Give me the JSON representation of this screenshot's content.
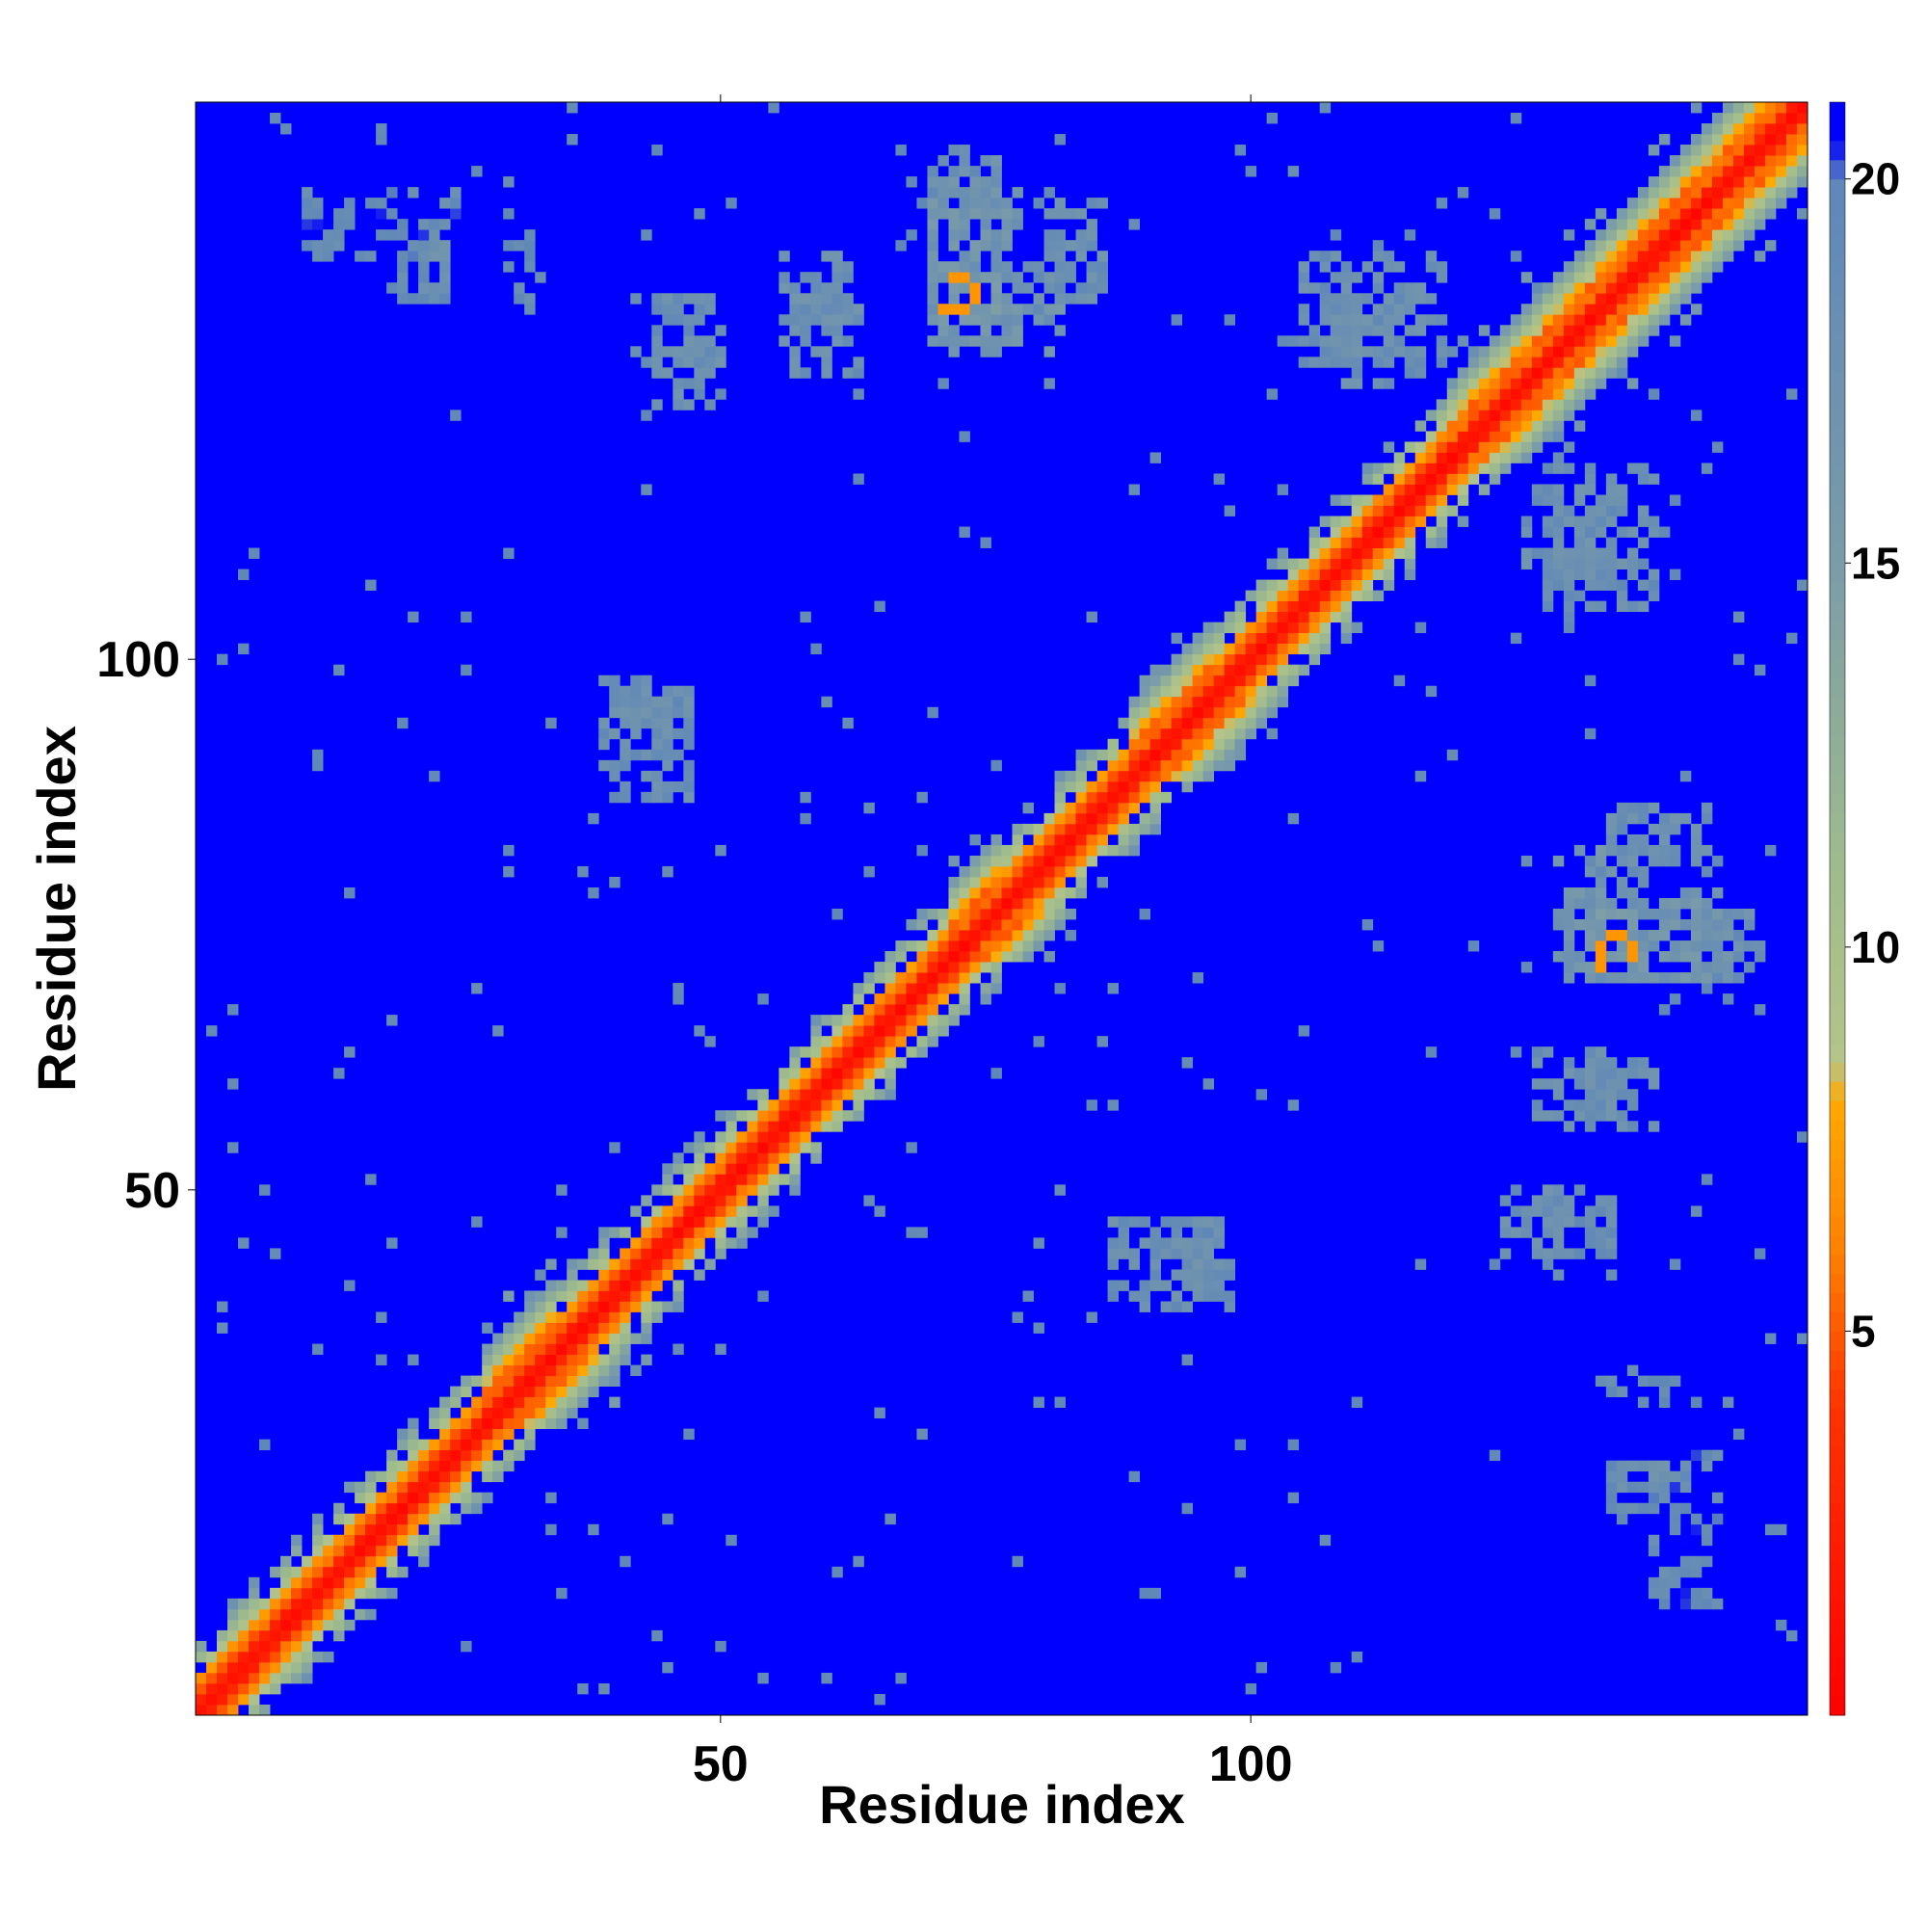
{
  "chart_data": {
    "type": "heatmap",
    "title": "",
    "xlabel": "Residue index",
    "ylabel": "Residue index",
    "n_residues": 152,
    "xlim": [
      1,
      152
    ],
    "ylim": [
      1,
      152
    ],
    "x_ticks": [
      50,
      100
    ],
    "y_ticks": [
      50,
      100
    ],
    "colorbar": {
      "ticks": [
        5,
        10,
        15,
        20
      ],
      "range": [
        0,
        21
      ],
      "stops": [
        {
          "value": 0,
          "color": "#ff0000"
        },
        {
          "value": 4,
          "color": "#ff3300"
        },
        {
          "value": 6,
          "color": "#ff8000"
        },
        {
          "value": 8,
          "color": "#ffaa00"
        },
        {
          "value": 8.5,
          "color": "#b5c48a"
        },
        {
          "value": 11,
          "color": "#9fbc8c"
        },
        {
          "value": 15,
          "color": "#7b9ca8"
        },
        {
          "value": 20,
          "color": "#5f87b8"
        },
        {
          "value": 20.5,
          "color": "#0000ff"
        },
        {
          "value": 21,
          "color": "#0000ff"
        }
      ]
    },
    "background_color": "#0000ff",
    "diagonal": {
      "profile": [
        {
          "offset": 0,
          "value": 1.0
        },
        {
          "offset": 1,
          "value": 2.5
        },
        {
          "offset": 2,
          "value": 5.2
        },
        {
          "offset": 3,
          "value": 7.0
        },
        {
          "offset": 4,
          "value": 9.5
        },
        {
          "offset": 5,
          "value": 11.5
        },
        {
          "offset": 6,
          "value": 14.0
        },
        {
          "offset": 7,
          "value": 17.0
        }
      ],
      "helix_regions": [
        [
          28,
          34
        ],
        [
          72,
          76
        ],
        [
          89,
          96
        ],
        [
          119,
          150
        ]
      ]
    },
    "contact_clusters": [
      {
        "x": [
          70,
          78
        ],
        "y": [
          130,
          145
        ],
        "value": 17
      },
      {
        "x": [
          80,
          86
        ],
        "y": [
          133,
          143
        ],
        "value": 18
      },
      {
        "x": [
          42,
          50
        ],
        "y": [
          128,
          134
        ],
        "value": 18
      },
      {
        "x": [
          56,
          62
        ],
        "y": [
          130,
          138
        ],
        "value": 18
      },
      {
        "x": [
          105,
          118
        ],
        "y": [
          128,
          138
        ],
        "value": 18
      },
      {
        "x": [
          125,
          132
        ],
        "y": [
          128,
          132
        ],
        "value": 18
      },
      {
        "x": [
          126,
          134
        ],
        "y": [
          108,
          116
        ],
        "value": 18
      },
      {
        "x": [
          39,
          45
        ],
        "y": [
          90,
          98
        ],
        "value": 18
      },
      {
        "x": [
          44,
          47
        ],
        "y": [
          92,
          96
        ],
        "value": 19
      },
      {
        "x": [
          129,
          137
        ],
        "y": [
          70,
          82
        ],
        "value": 17
      },
      {
        "x": [
          132,
          136
        ],
        "y": [
          72,
          76
        ],
        "value": 16
      },
      {
        "x": [
          141,
          148
        ],
        "y": [
          70,
          76
        ],
        "value": 18
      },
      {
        "x": [
          87,
          97
        ],
        "y": [
          40,
          47
        ],
        "value": 18
      },
      {
        "x": [
          124,
          130
        ],
        "y": [
          44,
          50
        ],
        "value": 18
      },
      {
        "x": [
          127,
          135
        ],
        "y": [
          57,
          63
        ],
        "value": 18
      },
      {
        "x": [
          134,
          141
        ],
        "y": [
          22,
          24
        ],
        "value": 18
      },
      {
        "x": [
          134,
          140
        ],
        "y": [
          30,
          33
        ],
        "value": 19
      },
      {
        "x": [
          11,
          25
        ],
        "y": [
          138,
          144
        ],
        "value": 19
      },
      {
        "x": [
          20,
          24
        ],
        "y": [
          134,
          140
        ],
        "value": 19
      }
    ],
    "strong_contacts": [
      {
        "x": 72,
        "y": 136,
        "value": 7
      },
      {
        "x": 73,
        "y": 136,
        "value": 7
      },
      {
        "x": 71,
        "y": 133,
        "value": 7
      },
      {
        "x": 72,
        "y": 133,
        "value": 7
      },
      {
        "x": 133,
        "y": 73,
        "value": 7
      },
      {
        "x": 135,
        "y": 74,
        "value": 7
      },
      {
        "x": 134,
        "y": 74,
        "value": 7
      },
      {
        "x": 31,
        "y": 30,
        "value": 7
      },
      {
        "x": 33,
        "y": 29,
        "value": 7
      },
      {
        "x": 75,
        "y": 77,
        "value": 7
      },
      {
        "x": 91,
        "y": 93,
        "value": 7
      },
      {
        "x": 100,
        "y": 102,
        "value": 7
      }
    ],
    "seed": 1337
  }
}
